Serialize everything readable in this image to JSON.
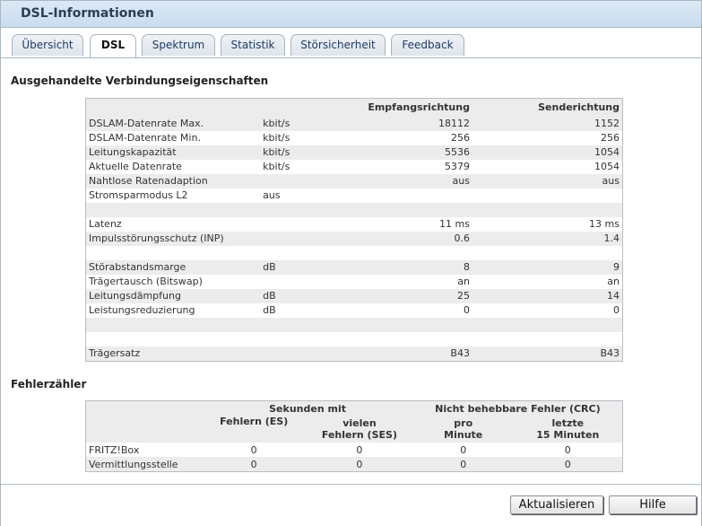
{
  "window": {
    "title": "DSL-Informationen"
  },
  "tabs": [
    {
      "label": "Übersicht"
    },
    {
      "label": "DSL"
    },
    {
      "label": "Spektrum"
    },
    {
      "label": "Statistik"
    },
    {
      "label": "Störsicherheit"
    },
    {
      "label": "Feedback"
    }
  ],
  "connection": {
    "title": "Ausgehandelte Verbindungseigenschaften",
    "header": {
      "receive": "Empfangsrichtung",
      "send": "Senderichtung"
    },
    "rows": [
      {
        "label": "DSLAM-Datenrate Max.",
        "unit": "kbit/s",
        "receive": "18112",
        "send": "1152"
      },
      {
        "label": "DSLAM-Datenrate Min.",
        "unit": "kbit/s",
        "receive": "256",
        "send": "256"
      },
      {
        "label": "Leitungskapazität",
        "unit": "kbit/s",
        "receive": "5536",
        "send": "1054"
      },
      {
        "label": "Aktuelle Datenrate",
        "unit": "kbit/s",
        "receive": "5379",
        "send": "1054"
      },
      {
        "label": "Nahtlose Ratenadaption",
        "unit": "",
        "receive": "aus",
        "send": "aus"
      },
      {
        "label": "Stromsparmodus L2",
        "unit": "aus",
        "receive": "",
        "send": ""
      },
      {
        "label": "",
        "unit": "",
        "receive": "",
        "send": ""
      },
      {
        "label": "Latenz",
        "unit": "",
        "receive": "11 ms",
        "send": "13 ms"
      },
      {
        "label": "Impulsstörungsschutz (INP)",
        "unit": "",
        "receive": "0.6",
        "send": "1.4"
      },
      {
        "label": "",
        "unit": "",
        "receive": "",
        "send": ""
      },
      {
        "label": "Störabstandsmarge",
        "unit": "dB",
        "receive": "8",
        "send": "9"
      },
      {
        "label": "Trägertausch (Bitswap)",
        "unit": "",
        "receive": "an",
        "send": "an"
      },
      {
        "label": "Leitungsdämpfung",
        "unit": "dB",
        "receive": "25",
        "send": "14"
      },
      {
        "label": "Leistungsreduzierung",
        "unit": "dB",
        "receive": "0",
        "send": "0"
      },
      {
        "label": "",
        "unit": "",
        "receive": "",
        "send": ""
      },
      {
        "label": "",
        "unit": "",
        "receive": "",
        "send": ""
      },
      {
        "label": "Trägersatz",
        "unit": "",
        "receive": "B43",
        "send": "B43"
      }
    ]
  },
  "errors": {
    "title": "Fehlerzähler",
    "group1": "Sekunden mit",
    "group2": "Nicht behebbare Fehler (CRC)",
    "col_es": "Fehlern (ES)",
    "col_ses_1": "vielen",
    "col_ses_2": "Fehlern (SES)",
    "col_min_1": "pro",
    "col_min_2": "Minute",
    "col_15_1": "letzte",
    "col_15_2": "15 Minuten",
    "rows": [
      {
        "label": "FRITZ!Box",
        "es": "0",
        "ses": "0",
        "per_min": "0",
        "last15": "0"
      },
      {
        "label": "Vermittlungsstelle",
        "es": "0",
        "ses": "0",
        "per_min": "0",
        "last15": "0"
      }
    ]
  },
  "buttons": {
    "refresh": "Aktualisieren",
    "help": "Hilfe"
  }
}
